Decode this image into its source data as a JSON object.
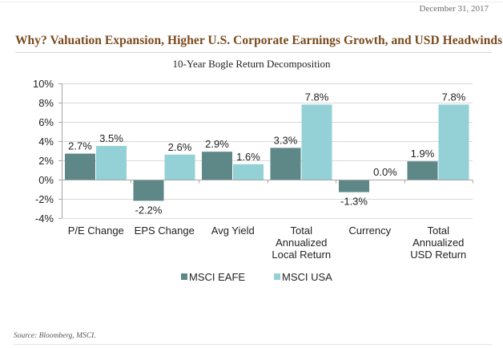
{
  "header": {
    "date": "December 31, 2017",
    "title": "Why? Valuation Expansion, Higher U.S. Corporate Earnings Growth, and USD Headwinds"
  },
  "footer": {
    "source": "Source: Bloomberg, MSCI."
  },
  "colors": {
    "eafe": "#5e8787",
    "usa": "#93d1d7",
    "grid": "#d9d9d9",
    "axis": "#a6a6a6",
    "text": "#222222"
  },
  "chart_data": {
    "type": "bar",
    "title": "10-Year Bogle Return Decomposition",
    "xlabel": "",
    "ylabel": "",
    "ylim": [
      -4,
      10
    ],
    "yticks": [
      10,
      8,
      6,
      4,
      2,
      0,
      -2,
      -4
    ],
    "ytick_labels": [
      "10%",
      "8%",
      "6%",
      "4%",
      "2%",
      "0%",
      "-2%",
      "-4%"
    ],
    "grid": true,
    "legend_position": "bottom-center",
    "categories": [
      [
        "P/E Change"
      ],
      [
        "EPS Change"
      ],
      [
        "Avg Yield"
      ],
      [
        "Total",
        "Annualized",
        "Local Return"
      ],
      [
        "Currency"
      ],
      [
        "Total",
        "Annualized",
        "USD Return"
      ]
    ],
    "series": [
      {
        "name": "MSCI EAFE",
        "values": [
          2.7,
          -2.2,
          2.9,
          3.3,
          -1.3,
          1.9
        ],
        "labels": [
          "2.7%",
          "-2.2%",
          "2.9%",
          "3.3%",
          "-1.3%",
          "1.9%"
        ]
      },
      {
        "name": "MSCI USA",
        "values": [
          3.5,
          2.6,
          1.6,
          7.8,
          0.0,
          7.8
        ],
        "labels": [
          "3.5%",
          "2.6%",
          "1.6%",
          "7.8%",
          "0.0%",
          "7.8%"
        ]
      }
    ]
  }
}
